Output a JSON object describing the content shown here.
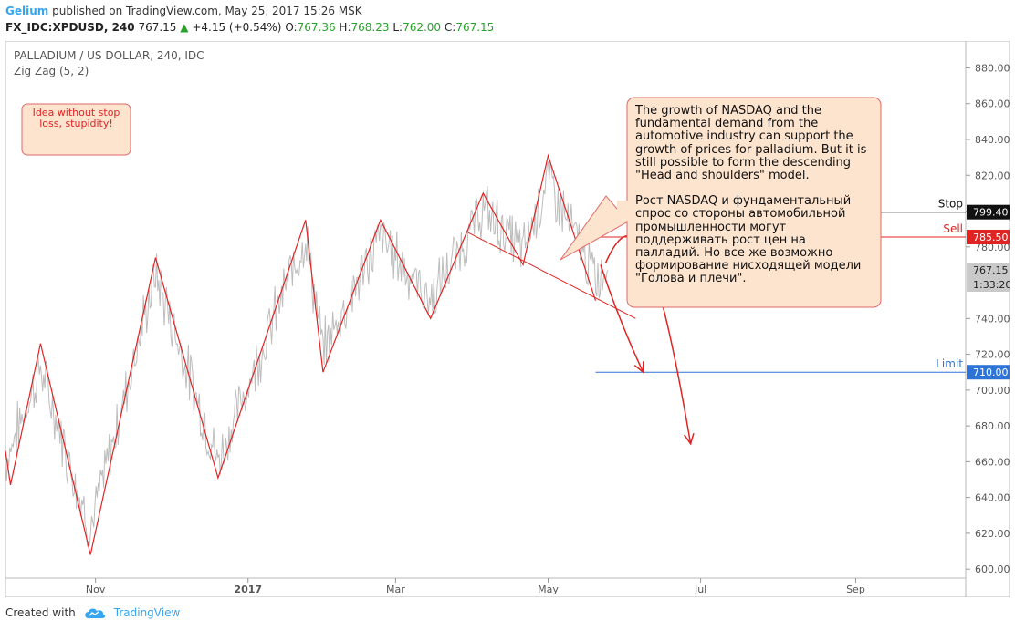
{
  "header": {
    "author": "Gelium",
    "published": "published on TradingView.com, May 25, 2017 15:26 MSK",
    "symbol": "FX_IDC:XPDUSD, 240",
    "last": "767.15",
    "change": "+4.15 (+0.54%)",
    "o_label": "O:",
    "o": "767.36",
    "h_label": "H:",
    "h": "768.23",
    "l_label": "L:",
    "l": "762.00",
    "c_label": "C:",
    "c": "767.15"
  },
  "chart_data": {
    "type": "line",
    "title": "PALLADIUM / US DOLLAR, 240, IDC",
    "indicator": "Zig Zag (5, 2)",
    "ylim": [
      595,
      895
    ],
    "yticks": [
      600,
      620,
      640,
      660,
      680,
      700,
      720,
      740,
      780,
      800,
      820,
      840,
      860,
      880
    ],
    "ytick_labels": [
      "600.00",
      "620.00",
      "640.00",
      "660.00",
      "680.00",
      "700.00",
      "720.00",
      "740.00",
      "780.00",
      "800.00",
      "820.00",
      "840.00",
      "860.00",
      "880.00"
    ],
    "xlim": [
      "2016-09-26",
      "2017-10-15"
    ],
    "xticks": [
      {
        "date": "2016-11-01",
        "label": "Nov"
      },
      {
        "date": "2017-01-01",
        "label": "2017"
      },
      {
        "date": "2017-03-01",
        "label": "Mar"
      },
      {
        "date": "2017-05-01",
        "label": "May"
      },
      {
        "date": "2017-07-01",
        "label": "Jul"
      },
      {
        "date": "2017-09-01",
        "label": "Sep"
      }
    ],
    "zigzag": {
      "name": "Zig Zag (5, 2)",
      "color": "#e02424",
      "points": [
        {
          "x": "2016-09-26",
          "y": 666
        },
        {
          "x": "2016-09-28",
          "y": 647
        },
        {
          "x": "2016-10-10",
          "y": 726
        },
        {
          "x": "2016-10-30",
          "y": 608
        },
        {
          "x": "2016-11-25",
          "y": 774
        },
        {
          "x": "2016-12-20",
          "y": 651
        },
        {
          "x": "2017-01-24",
          "y": 795
        },
        {
          "x": "2017-01-31",
          "y": 710
        },
        {
          "x": "2017-02-23",
          "y": 795
        },
        {
          "x": "2017-03-15",
          "y": 740
        },
        {
          "x": "2017-04-05",
          "y": 810
        },
        {
          "x": "2017-04-21",
          "y": 770
        },
        {
          "x": "2017-05-01",
          "y": 831
        },
        {
          "x": "2017-05-20",
          "y": 750
        }
      ]
    },
    "price": {
      "color": "#bdbdbd",
      "anchors": [
        {
          "x": "2016-09-26",
          "y": 660
        },
        {
          "x": "2016-10-10",
          "y": 712
        },
        {
          "x": "2016-10-30",
          "y": 622
        },
        {
          "x": "2016-11-25",
          "y": 765
        },
        {
          "x": "2016-12-20",
          "y": 660
        },
        {
          "x": "2017-01-24",
          "y": 786
        },
        {
          "x": "2017-01-31",
          "y": 722
        },
        {
          "x": "2017-02-23",
          "y": 786
        },
        {
          "x": "2017-03-15",
          "y": 750
        },
        {
          "x": "2017-04-05",
          "y": 801
        },
        {
          "x": "2017-04-21",
          "y": 778
        },
        {
          "x": "2017-05-01",
          "y": 818
        },
        {
          "x": "2017-05-20",
          "y": 762
        },
        {
          "x": "2017-05-25",
          "y": 767
        }
      ]
    },
    "neckline": {
      "x1": "2017-03-30",
      "y1": 788,
      "x2": "2017-06-05",
      "y2": 740
    },
    "levels": [
      {
        "name": "Stop",
        "value": 799.4,
        "label": "799.40",
        "color": "#111111",
        "start": "2017-05-20"
      },
      {
        "name": "Sell",
        "value": 785.5,
        "label": "785.50",
        "color": "#e02424",
        "start": "2017-05-20"
      },
      {
        "name": "Limit",
        "value": 710.0,
        "label": "710.00",
        "color": "#2e74d6",
        "start": "2017-05-20"
      }
    ],
    "current_price": {
      "value": 767.15,
      "label": "767.15",
      "countdown": "1:33:20"
    },
    "arrows": [
      {
        "color": "#e02424",
        "points": [
          {
            "x": "2017-05-22",
            "y": 770
          },
          {
            "x": "2017-05-29",
            "y": 740
          },
          {
            "x": "2017-06-08",
            "y": 710
          }
        ]
      },
      {
        "color": "#e02424",
        "points": [
          {
            "x": "2017-05-24",
            "y": 771
          },
          {
            "x": "2017-06-04",
            "y": 806
          },
          {
            "x": "2017-06-13",
            "y": 784
          },
          {
            "x": "2017-06-27",
            "y": 670
          }
        ]
      }
    ],
    "notes": {
      "warning": "Idea without stop loss, stupidity!",
      "analysis_en": "The growth of NASDAQ and the fundamental demand from the automotive industry can support the growth of prices for palladium. But it is still possible to form the descending \"Head and shoulders\" model.",
      "analysis_ru": "Рост NASDAQ и фундаментальный спрос со стороны автомобильной промышленности могут поддерживать рост цен на палладий. Но все же возможно формирование нисходящей модели \"Голова и плечи\"."
    }
  },
  "footer": {
    "created_with": "Created with",
    "brand": "TradingView"
  },
  "colors": {
    "brand": "#37a6ef",
    "up": "#27a22a"
  }
}
